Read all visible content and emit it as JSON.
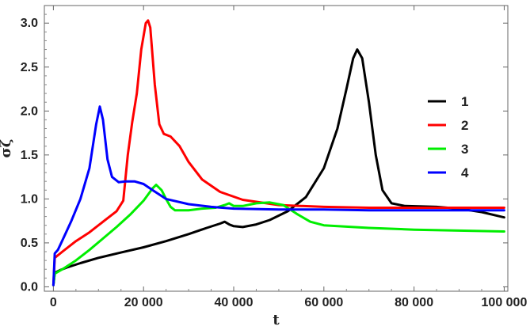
{
  "chart_data": {
    "type": "line",
    "xlabel": "t",
    "ylabel": "σζ",
    "xlim": [
      -2000,
      100800
    ],
    "ylim": [
      -0.05,
      3.2
    ],
    "xticks": [
      0,
      20000,
      40000,
      60000,
      80000,
      100000
    ],
    "xtick_labels": [
      "0",
      "20 000",
      "40 000",
      "60 000",
      "80 000",
      "100 000"
    ],
    "yticks": [
      0.0,
      0.5,
      1.0,
      1.5,
      2.0,
      2.5,
      3.0
    ],
    "ytick_labels": [
      "0.0",
      "0.5",
      "1.0",
      "1.5",
      "2.0",
      "2.5",
      "3.0"
    ],
    "grid": false,
    "legend_position": "right",
    "series": [
      {
        "name": "1",
        "color": "#000000",
        "x": [
          0,
          300,
          1500,
          3000,
          6000,
          10000,
          15000,
          20000,
          25000,
          30000,
          34000,
          37000,
          38000,
          39000,
          40000,
          42000,
          45000,
          48000,
          52000,
          56000,
          60000,
          63000,
          65000,
          66500,
          67400,
          68500,
          70000,
          71500,
          73000,
          75000,
          78000,
          85000,
          90000,
          95000,
          100000
        ],
        "y": [
          0.02,
          0.16,
          0.19,
          0.22,
          0.27,
          0.33,
          0.39,
          0.45,
          0.52,
          0.6,
          0.67,
          0.72,
          0.74,
          0.71,
          0.69,
          0.68,
          0.71,
          0.76,
          0.86,
          1.02,
          1.35,
          1.8,
          2.25,
          2.6,
          2.7,
          2.6,
          2.1,
          1.5,
          1.1,
          0.95,
          0.92,
          0.91,
          0.89,
          0.85,
          0.79
        ]
      },
      {
        "name": "2",
        "color": "#ff0000",
        "x": [
          0,
          300,
          2000,
          5000,
          8000,
          11000,
          14000,
          15500,
          16500,
          17500,
          18500,
          19500,
          20500,
          21000,
          21500,
          22500,
          23500,
          24500,
          26000,
          28000,
          30000,
          33000,
          37000,
          42000,
          50000,
          60000,
          70000,
          80000,
          90000,
          100000
        ],
        "y": [
          0.02,
          0.33,
          0.4,
          0.52,
          0.62,
          0.74,
          0.86,
          0.98,
          1.5,
          1.88,
          2.2,
          2.7,
          3.0,
          3.03,
          2.95,
          2.3,
          1.85,
          1.74,
          1.71,
          1.6,
          1.42,
          1.22,
          1.08,
          0.99,
          0.93,
          0.91,
          0.9,
          0.9,
          0.9,
          0.9
        ]
      },
      {
        "name": "3",
        "color": "#00ee00",
        "x": [
          0,
          300,
          2000,
          5000,
          8000,
          11000,
          14000,
          17000,
          20000,
          22000,
          22800,
          24000,
          25000,
          26000,
          27000,
          30000,
          33000,
          36000,
          38000,
          39000,
          40000,
          42000,
          45000,
          48000,
          51000,
          54000,
          57000,
          60000,
          70000,
          80000,
          90000,
          100000
        ],
        "y": [
          0.02,
          0.15,
          0.2,
          0.3,
          0.42,
          0.55,
          0.68,
          0.82,
          0.98,
          1.12,
          1.16,
          1.1,
          1.0,
          0.91,
          0.87,
          0.87,
          0.89,
          0.9,
          0.93,
          0.95,
          0.92,
          0.92,
          0.95,
          0.96,
          0.93,
          0.83,
          0.74,
          0.7,
          0.67,
          0.65,
          0.64,
          0.63
        ]
      },
      {
        "name": "4",
        "color": "#0000ff",
        "x": [
          0,
          300,
          1000,
          2000,
          4000,
          6000,
          8000,
          9500,
          10300,
          11000,
          12000,
          13000,
          14500,
          16000,
          18000,
          20000,
          22000,
          25000,
          30000,
          35000,
          40000,
          50000,
          60000,
          70000,
          80000,
          90000,
          100000
        ],
        "y": [
          0.02,
          0.38,
          0.42,
          0.53,
          0.75,
          1.0,
          1.35,
          1.85,
          2.05,
          1.9,
          1.45,
          1.25,
          1.19,
          1.2,
          1.2,
          1.17,
          1.1,
          1.0,
          0.94,
          0.91,
          0.89,
          0.88,
          0.88,
          0.87,
          0.87,
          0.87,
          0.87
        ]
      }
    ]
  }
}
